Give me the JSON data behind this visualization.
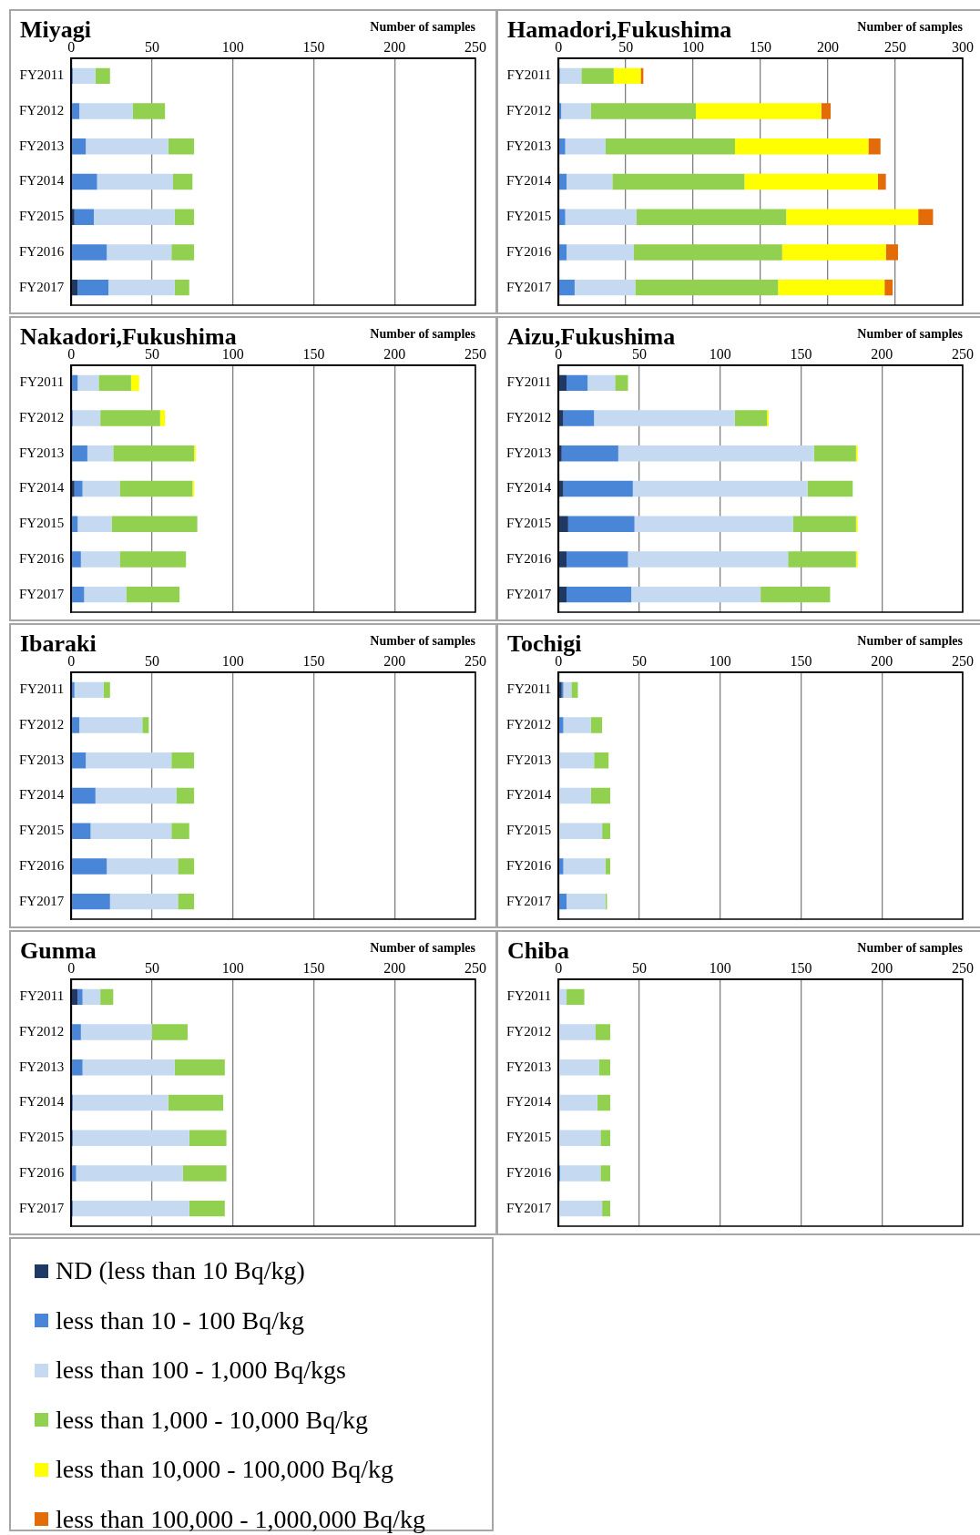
{
  "chart_data": [
    {
      "type": "bar",
      "orientation": "horizontal",
      "stacked": true,
      "title": "Miyagi",
      "xlabel": "Number of samples",
      "categories": [
        "FY2011",
        "FY2012",
        "FY2013",
        "FY2014",
        "FY2015",
        "FY2016",
        "FY2017"
      ],
      "xlim": [
        0,
        250
      ],
      "xticks": [
        0,
        50,
        100,
        150,
        200,
        250
      ],
      "grid": "x",
      "series": [
        {
          "color": "#1f3864",
          "values": [
            0,
            0,
            0,
            0,
            2,
            0,
            4
          ]
        },
        {
          "color": "#4a86d8",
          "values": [
            1,
            5,
            9,
            16,
            12,
            22,
            19
          ]
        },
        {
          "color": "#c5d9f1",
          "values": [
            14,
            33,
            51,
            47,
            50,
            40,
            41
          ]
        },
        {
          "color": "#92d050",
          "values": [
            9,
            20,
            16,
            12,
            12,
            14,
            9
          ]
        }
      ]
    },
    {
      "type": "bar",
      "orientation": "horizontal",
      "stacked": true,
      "title": "Hamadori,Fukushima",
      "xlabel": "Number of samples",
      "categories": [
        "FY2011",
        "FY2012",
        "FY2013",
        "FY2014",
        "FY2015",
        "FY2016",
        "FY2017"
      ],
      "xlim": [
        0,
        300
      ],
      "xticks": [
        0,
        50,
        100,
        150,
        200,
        250,
        300
      ],
      "grid": "x",
      "series": [
        {
          "color": "#4a86d8",
          "values": [
            1,
            2,
            5,
            6,
            5,
            6,
            12
          ]
        },
        {
          "color": "#c5d9f1",
          "values": [
            16,
            22,
            30,
            34,
            53,
            50,
            45
          ]
        },
        {
          "color": "#92d050",
          "values": [
            24,
            78,
            96,
            98,
            111,
            110,
            106
          ]
        },
        {
          "color": "#ffff00",
          "values": [
            20,
            93,
            99,
            99,
            98,
            77,
            79
          ]
        },
        {
          "color": "#e36c09",
          "values": [
            2,
            7,
            9,
            6,
            11,
            9,
            6
          ]
        }
      ]
    },
    {
      "type": "bar",
      "orientation": "horizontal",
      "stacked": true,
      "title": "Nakadori,Fukushima",
      "xlabel": "Number of samples",
      "categories": [
        "FY2011",
        "FY2012",
        "FY2013",
        "FY2014",
        "FY2015",
        "FY2016",
        "FY2017"
      ],
      "xlim": [
        0,
        250
      ],
      "xticks": [
        0,
        50,
        100,
        150,
        200,
        250
      ],
      "grid": "x",
      "series": [
        {
          "color": "#1f3864",
          "values": [
            0,
            0,
            0,
            2,
            0,
            0,
            0
          ]
        },
        {
          "color": "#4a86d8",
          "values": [
            4,
            1,
            10,
            5,
            4,
            6,
            8
          ]
        },
        {
          "color": "#c5d9f1",
          "values": [
            13,
            17,
            16,
            23,
            21,
            24,
            26
          ]
        },
        {
          "color": "#92d050",
          "values": [
            20,
            37,
            50,
            45,
            53,
            41,
            33
          ]
        },
        {
          "color": "#ffff00",
          "values": [
            5,
            3,
            1,
            1,
            0,
            0,
            0
          ]
        }
      ]
    },
    {
      "type": "bar",
      "orientation": "horizontal",
      "stacked": true,
      "title": "Aizu,Fukushima",
      "xlabel": "Number of samples",
      "categories": [
        "FY2011",
        "FY2012",
        "FY2013",
        "FY2014",
        "FY2015",
        "FY2016",
        "FY2017"
      ],
      "xlim": [
        0,
        250
      ],
      "xticks": [
        0,
        50,
        100,
        150,
        200,
        250
      ],
      "grid": "x",
      "series": [
        {
          "color": "#1f3864",
          "values": [
            5,
            3,
            2,
            3,
            6,
            5,
            5
          ]
        },
        {
          "color": "#4a86d8",
          "values": [
            13,
            19,
            35,
            43,
            41,
            38,
            40
          ]
        },
        {
          "color": "#c5d9f1",
          "values": [
            17,
            87,
            121,
            108,
            98,
            99,
            80
          ]
        },
        {
          "color": "#92d050",
          "values": [
            8,
            20,
            26,
            28,
            39,
            42,
            43
          ]
        },
        {
          "color": "#ffff00",
          "values": [
            0,
            1,
            1,
            0,
            1,
            1,
            0
          ]
        }
      ]
    },
    {
      "type": "bar",
      "orientation": "horizontal",
      "stacked": true,
      "title": "Ibaraki",
      "xlabel": "Number of samples",
      "categories": [
        "FY2011",
        "FY2012",
        "FY2013",
        "FY2014",
        "FY2015",
        "FY2016",
        "FY2017"
      ],
      "xlim": [
        0,
        250
      ],
      "xticks": [
        0,
        50,
        100,
        150,
        200,
        250
      ],
      "grid": "x",
      "series": [
        {
          "color": "#4a86d8",
          "values": [
            2,
            5,
            9,
            15,
            12,
            22,
            24
          ]
        },
        {
          "color": "#c5d9f1",
          "values": [
            18,
            39,
            53,
            50,
            50,
            44,
            42
          ]
        },
        {
          "color": "#92d050",
          "values": [
            4,
            4,
            14,
            11,
            11,
            10,
            10
          ]
        }
      ]
    },
    {
      "type": "bar",
      "orientation": "horizontal",
      "stacked": true,
      "title": "Tochigi",
      "xlabel": "Number of samples",
      "categories": [
        "FY2011",
        "FY2012",
        "FY2013",
        "FY2014",
        "FY2015",
        "FY2016",
        "FY2017"
      ],
      "xlim": [
        0,
        250
      ],
      "xticks": [
        0,
        50,
        100,
        150,
        200,
        250
      ],
      "grid": "x",
      "series": [
        {
          "color": "#1f3864",
          "values": [
            2,
            0,
            0,
            0,
            0,
            0,
            0
          ]
        },
        {
          "color": "#4a86d8",
          "values": [
            1,
            3,
            0,
            0,
            0,
            3,
            5
          ]
        },
        {
          "color": "#c5d9f1",
          "values": [
            5,
            17,
            22,
            20,
            27,
            26,
            24
          ]
        },
        {
          "color": "#92d050",
          "values": [
            4,
            7,
            9,
            12,
            5,
            3,
            1
          ]
        }
      ]
    },
    {
      "type": "bar",
      "orientation": "horizontal",
      "stacked": true,
      "title": "Gunma",
      "xlabel": "Number of samples",
      "categories": [
        "FY2011",
        "FY2012",
        "FY2013",
        "FY2014",
        "FY2015",
        "FY2016",
        "FY2017"
      ],
      "xlim": [
        0,
        250
      ],
      "xticks": [
        0,
        50,
        100,
        150,
        200,
        250
      ],
      "grid": "x",
      "legend": "bottom",
      "series": [
        {
          "name": "ND (less than 10 Bq/kg)",
          "color": "#1f3864",
          "values": [
            4,
            0,
            0,
            0,
            0,
            0,
            0
          ]
        },
        {
          "name": "less than 10 - 100 Bq/kg",
          "color": "#4a86d8",
          "values": [
            3,
            6,
            7,
            1,
            1,
            3,
            1
          ]
        },
        {
          "name": "less than 100 - 1,000 Bq/kgs",
          "color": "#c5d9f1",
          "values": [
            11,
            44,
            57,
            59,
            72,
            66,
            72
          ]
        },
        {
          "name": "less than 1,000 - 10,000 Bq/kg",
          "color": "#92d050",
          "values": [
            8,
            22,
            31,
            34,
            23,
            27,
            22
          ]
        },
        {
          "name": "less than 10,000 - 100,000 Bq/kg",
          "color": "#ffff00",
          "values": [
            0,
            0,
            0,
            0,
            0,
            0,
            0
          ]
        },
        {
          "name": "less than 100,000 - 1,000,000 Bq/kg",
          "color": "#e36c09",
          "values": [
            0,
            0,
            0,
            0,
            0,
            0,
            0
          ]
        }
      ]
    },
    {
      "type": "bar",
      "orientation": "horizontal",
      "stacked": true,
      "title": "Chiba",
      "xlabel": "Number of samples",
      "categories": [
        "FY2011",
        "FY2012",
        "FY2013",
        "FY2014",
        "FY2015",
        "FY2016",
        "FY2017"
      ],
      "xlim": [
        0,
        250
      ],
      "xticks": [
        0,
        50,
        100,
        150,
        200,
        250
      ],
      "grid": "x",
      "series": [
        {
          "color": "#4a86d8",
          "values": [
            0,
            0,
            0,
            0,
            0,
            1,
            0
          ]
        },
        {
          "color": "#c5d9f1",
          "values": [
            5,
            23,
            25,
            24,
            26,
            25,
            27
          ]
        },
        {
          "color": "#92d050",
          "values": [
            11,
            9,
            7,
            8,
            6,
            6,
            5
          ]
        }
      ]
    }
  ]
}
